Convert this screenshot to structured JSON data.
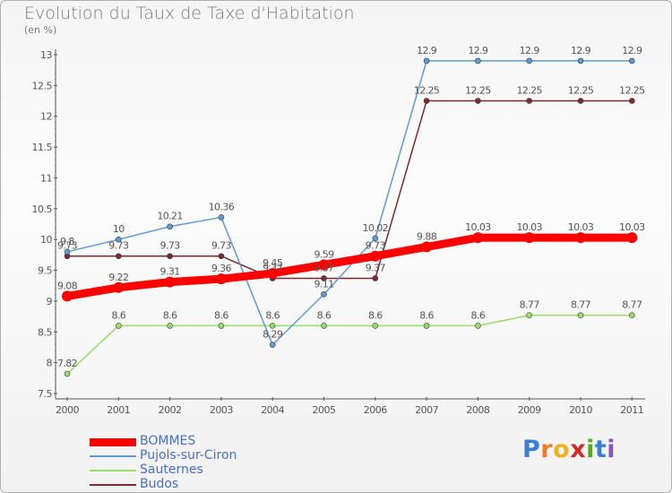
{
  "chart_data": {
    "type": "line",
    "title": "Evolution du Taux de Taxe d'Habitation",
    "subtitle": "(en %)",
    "x": [
      "2000",
      "2001",
      "2002",
      "2003",
      "2004",
      "2005",
      "2006",
      "2007",
      "2008",
      "2009",
      "2010",
      "2011"
    ],
    "ylim": [
      7.5,
      13
    ],
    "yticks": [
      "7.5",
      "8",
      "8.5",
      "9",
      "9.5",
      "10",
      "10.5",
      "11",
      "11.5",
      "12",
      "12.5",
      "13"
    ],
    "grid": false,
    "legend_position": "bottom-left",
    "series": [
      {
        "name": "BOMMES",
        "color": "#ff0000",
        "values": [
          9.08,
          9.22,
          9.31,
          9.36,
          9.45,
          9.59,
          9.73,
          9.88,
          10.03,
          10.03,
          10.03,
          10.03
        ],
        "labels": [
          "9.08",
          "9.22",
          "9.31",
          "9.36",
          "9.45",
          "9.59",
          "9.73",
          "9.88",
          "10.03",
          "10.03",
          "10.03",
          "10.03"
        ]
      },
      {
        "name": "Pujols-sur-Ciron",
        "color": "#5f9bd1",
        "values": [
          9.8,
          10,
          10.21,
          10.36,
          8.29,
          9.11,
          10.02,
          12.9,
          12.9,
          12.9,
          12.9,
          12.9
        ],
        "labels": [
          "9.8",
          "10",
          "10.21",
          "10.36",
          "8.29",
          "9.11",
          "10.02",
          "12.9",
          "12.9",
          "12.9",
          "12.9",
          "12.9"
        ]
      },
      {
        "name": "Sauternes",
        "color": "#99dd66",
        "values": [
          7.82,
          8.6,
          8.6,
          8.6,
          8.6,
          8.6,
          8.6,
          8.6,
          8.6,
          8.77,
          8.77,
          8.77
        ],
        "labels": [
          "7.82",
          "8.6",
          "8.6",
          "8.6",
          "8.6",
          "8.6",
          "8.6",
          "8.6",
          "8.6",
          "8.77",
          "8.77",
          "8.77"
        ]
      },
      {
        "name": "Budos",
        "color": "#7a2a30",
        "values": [
          9.73,
          9.73,
          9.73,
          9.73,
          9.37,
          9.37,
          9.37,
          12.25,
          12.25,
          12.25,
          12.25,
          12.25
        ],
        "labels": [
          "9.73",
          "9.73",
          "9.73",
          "9.73",
          "9.37",
          "9.37",
          "9.37",
          "12.25",
          "12.25",
          "12.25",
          "12.25",
          "12.25"
        ]
      }
    ]
  },
  "logo": {
    "letters": [
      "P",
      "r",
      "o",
      "x",
      "i",
      "t",
      "i"
    ]
  }
}
